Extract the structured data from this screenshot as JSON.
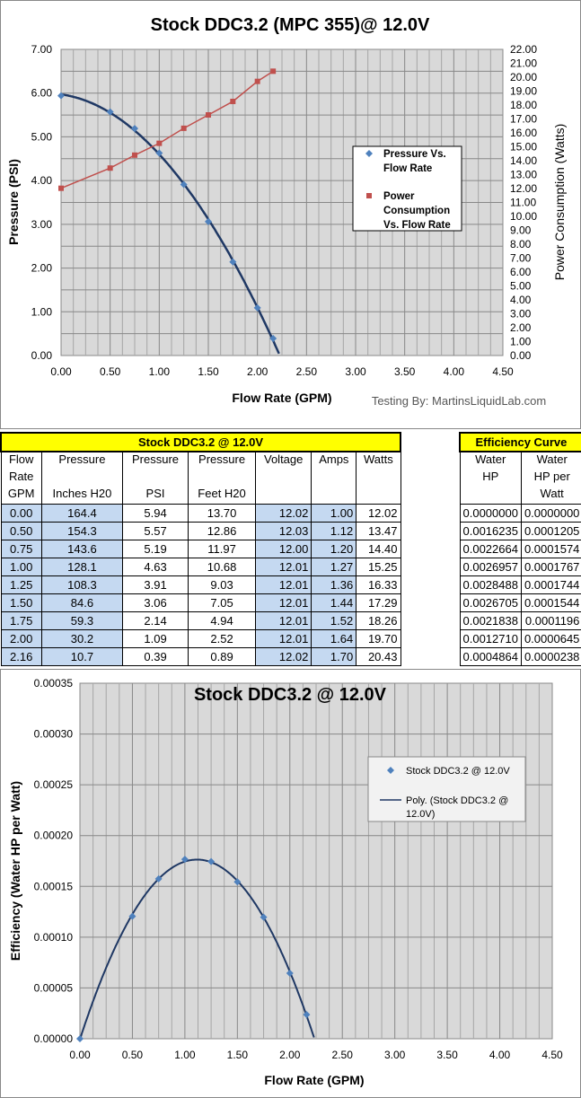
{
  "chart_data": [
    {
      "type": "scatter",
      "title": "Stock DDC3.2 (MPC 355)@ 12.0V",
      "xlabel": "Flow Rate (GPM)",
      "ylabel": "Pressure (PSI)",
      "y2label": "Power Consumption (Watts)",
      "xlim": [
        0,
        4.5
      ],
      "ylim": [
        0,
        7
      ],
      "y2lim": [
        0,
        22
      ],
      "grid": true,
      "legend": "center-right",
      "xticks": [
        "0.00",
        "0.50",
        "1.00",
        "1.50",
        "2.00",
        "2.50",
        "3.00",
        "3.50",
        "4.00",
        "4.50"
      ],
      "yticks": [
        "0.00",
        "1.00",
        "2.00",
        "3.00",
        "4.00",
        "5.00",
        "6.00",
        "7.00"
      ],
      "y2ticks": [
        "0.00",
        "1.00",
        "2.00",
        "3.00",
        "4.00",
        "5.00",
        "6.00",
        "7.00",
        "8.00",
        "9.00",
        "10.00",
        "11.00",
        "12.00",
        "13.00",
        "14.00",
        "15.00",
        "16.00",
        "17.00",
        "18.00",
        "19.00",
        "20.00",
        "21.00",
        "22.00"
      ],
      "annotation": "Testing By: MartinsLiquidLab.com",
      "series": [
        {
          "name": "Pressure Vs. Flow Rate",
          "color": "#4f81bd",
          "marker": "diamond",
          "axis": "left",
          "x": [
            0,
            0.5,
            0.75,
            1,
            1.25,
            1.5,
            1.75,
            2,
            2.16
          ],
          "y": [
            5.94,
            5.57,
            5.19,
            4.63,
            3.91,
            3.06,
            2.14,
            1.09,
            0.39
          ]
        },
        {
          "name": "Power Consumption Vs. Flow Rate",
          "color": "#c0504d",
          "marker": "square",
          "axis": "right",
          "x": [
            0,
            0.5,
            0.75,
            1,
            1.25,
            1.5,
            1.75,
            2,
            2.16
          ],
          "y": [
            12.02,
            13.47,
            14.4,
            15.25,
            16.33,
            17.29,
            18.26,
            19.7,
            20.43
          ]
        }
      ],
      "legend_lines": [
        [
          "Pressure Vs.",
          "Flow Rate"
        ],
        [
          "Power",
          "Consumption",
          "Vs. Flow Rate"
        ]
      ]
    },
    {
      "type": "scatter",
      "title": "Stock DDC3.2 @ 12.0V",
      "xlabel": "Flow Rate (GPM)",
      "ylabel": "Efficiency (Water HP per Watt)",
      "xlim": [
        0,
        4.5
      ],
      "ylim": [
        0,
        0.00035
      ],
      "grid": true,
      "legend": "top-right",
      "xticks": [
        "0.00",
        "0.50",
        "1.00",
        "1.50",
        "2.00",
        "2.50",
        "3.00",
        "3.50",
        "4.00",
        "4.50"
      ],
      "yticks": [
        "0.00000",
        "0.00005",
        "0.00010",
        "0.00015",
        "0.00020",
        "0.00025",
        "0.00030",
        "0.00035"
      ],
      "series": [
        {
          "name": "Stock DDC3.2  @ 12.0V",
          "color": "#4f81bd",
          "marker": "diamond",
          "x": [
            0,
            0.5,
            0.75,
            1,
            1.25,
            1.5,
            1.75,
            2,
            2.16
          ],
          "y": [
            0,
            0.0001205,
            0.0001574,
            0.0001767,
            0.0001744,
            0.0001544,
            0.0001196,
            6.45e-05,
            2.38e-05
          ]
        },
        {
          "name": "Poly. (Stock DDC3.2 @ 12.0V)",
          "color": "#1f3864",
          "type": "trendline"
        }
      ],
      "legend_lines": [
        [
          "Stock DDC3.2  @ 12.0V"
        ],
        [
          "Poly. (Stock DDC3.2 @",
          "12.0V)"
        ]
      ]
    }
  ],
  "table": {
    "title": "Stock DDC3.2 @ 12.0V",
    "headers": [
      [
        "Flow",
        "Rate",
        "GPM"
      ],
      [
        "Pressure",
        "",
        "Inches H20"
      ],
      [
        "Pressure",
        "",
        "PSI"
      ],
      [
        "Pressure",
        "",
        "Feet H20"
      ],
      [
        "Voltage",
        "",
        ""
      ],
      [
        "Amps",
        "",
        ""
      ],
      [
        "Watts",
        "",
        ""
      ]
    ],
    "rows": [
      [
        "0.00",
        "164.4",
        "5.94",
        "13.70",
        "12.02",
        "1.00",
        "12.02"
      ],
      [
        "0.50",
        "154.3",
        "5.57",
        "12.86",
        "12.03",
        "1.12",
        "13.47"
      ],
      [
        "0.75",
        "143.6",
        "5.19",
        "11.97",
        "12.00",
        "1.20",
        "14.40"
      ],
      [
        "1.00",
        "128.1",
        "4.63",
        "10.68",
        "12.01",
        "1.27",
        "15.25"
      ],
      [
        "1.25",
        "108.3",
        "3.91",
        "9.03",
        "12.01",
        "1.36",
        "16.33"
      ],
      [
        "1.50",
        "84.6",
        "3.06",
        "7.05",
        "12.01",
        "1.44",
        "17.29"
      ],
      [
        "1.75",
        "59.3",
        "2.14",
        "4.94",
        "12.01",
        "1.52",
        "18.26"
      ],
      [
        "2.00",
        "30.2",
        "1.09",
        "2.52",
        "12.01",
        "1.64",
        "19.70"
      ],
      [
        "2.16",
        "10.7",
        "0.39",
        "0.89",
        "12.02",
        "1.70",
        "20.43"
      ]
    ]
  },
  "efficiency": {
    "title": "Efficiency Curve",
    "headers": [
      [
        "Water",
        "HP",
        ""
      ],
      [
        "Water",
        "HP per",
        "Watt"
      ]
    ],
    "rows": [
      [
        "0.0000000",
        "0.0000000"
      ],
      [
        "0.0016235",
        "0.0001205"
      ],
      [
        "0.0022664",
        "0.0001574"
      ],
      [
        "0.0026957",
        "0.0001767"
      ],
      [
        "0.0028488",
        "0.0001744"
      ],
      [
        "0.0026705",
        "0.0001544"
      ],
      [
        "0.0021838",
        "0.0001196"
      ],
      [
        "0.0012710",
        "0.0000645"
      ],
      [
        "0.0004864",
        "0.0000238"
      ]
    ]
  }
}
